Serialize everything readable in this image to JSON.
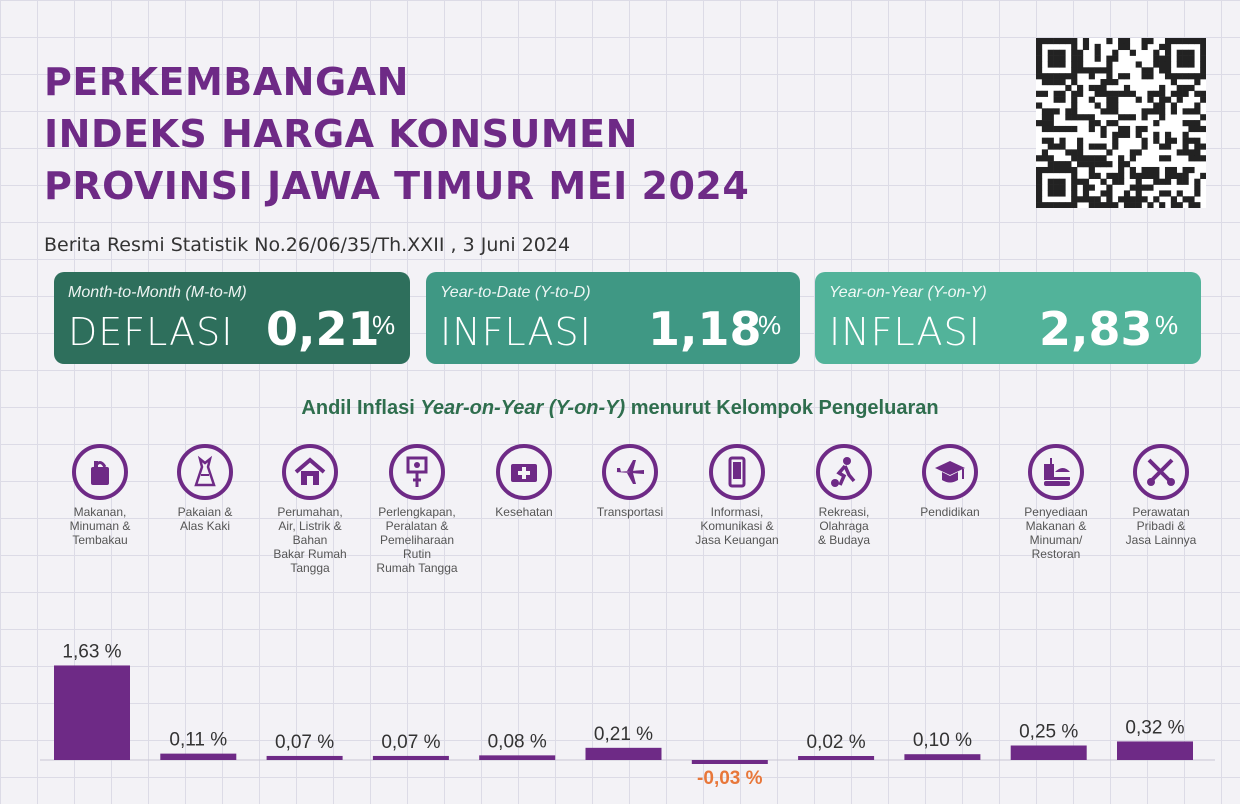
{
  "title": {
    "line1": "PERKEMBANGAN",
    "line2": "INDEKS HARGA KONSUMEN",
    "line3": "PROVINSI JAWA TIMUR MEI 2024"
  },
  "subtitle": "Berita Resmi Statistik No.26/06/35/Th.XXII , 3 Juni 2024",
  "colors": {
    "title": "#6e2a86",
    "bar": "#6e2a86",
    "negative_label": "#e8773a",
    "card_mtm": "#2e6f5c",
    "card_ytd": "#3f9884",
    "card_yoy": "#52b39a"
  },
  "cards": [
    {
      "label": "Month-to-Month (M-to-M)",
      "word": "DEFLASI",
      "value": "0,21",
      "unit": "%"
    },
    {
      "label": "Year-to-Date (Y-to-D)",
      "word": "INFLASI",
      "value": "1,18",
      "unit": "%"
    },
    {
      "label": "Year-on-Year (Y-on-Y)",
      "word": "INFLASI",
      "value": "2,83",
      "unit": "%"
    }
  ],
  "chart_title": {
    "part1": "Andil Inflasi ",
    "part2": "Year-on-Year (Y-on-Y)",
    "part3": " menurut Kelompok Pengeluaran"
  },
  "categories": [
    {
      "name": "Makanan,\nMinuman &\nTembakau",
      "icon": "grocery-bag-icon"
    },
    {
      "name": "Pakaian &\nAlas Kaki",
      "icon": "dress-icon"
    },
    {
      "name": "Perumahan,\nAir, Listrik &\nBahan\nBakar Rumah\nTangga",
      "icon": "house-icon"
    },
    {
      "name": "Perlengkapan,\nPeralatan &\nPemeliharaan\nRutin\nRumah Tangga",
      "icon": "plug-icon"
    },
    {
      "name": "Kesehatan",
      "icon": "medical-kit-icon"
    },
    {
      "name": "Transportasi",
      "icon": "airplane-icon"
    },
    {
      "name": "Informasi,\nKomunikasi &\nJasa Keuangan",
      "icon": "smartphone-icon"
    },
    {
      "name": "Rekreasi,\nOlahraga\n& Budaya",
      "icon": "soccer-player-icon"
    },
    {
      "name": "Pendidikan",
      "icon": "graduation-cap-icon"
    },
    {
      "name": "Penyediaan\nMakanan &\nMinuman/\nRestoran",
      "icon": "fast-food-icon"
    },
    {
      "name": "Perawatan\nPribadi &\nJasa Lainnya",
      "icon": "scissors-comb-icon"
    }
  ],
  "chart_data": {
    "type": "bar",
    "title": "Andil Inflasi Year-on-Year (Y-on-Y) menurut Kelompok Pengeluaran",
    "categories": [
      "Makanan, Minuman & Tembakau",
      "Pakaian & Alas Kaki",
      "Perumahan, Air, Listrik & Bahan Bakar Rumah Tangga",
      "Perlengkapan, Peralatan & Pemeliharaan Rutin Rumah Tangga",
      "Kesehatan",
      "Transportasi",
      "Informasi, Komunikasi & Jasa Keuangan",
      "Rekreasi, Olahraga & Budaya",
      "Pendidikan",
      "Penyediaan Makanan & Minuman/ Restoran",
      "Perawatan Pribadi & Jasa Lainnya"
    ],
    "values": [
      1.63,
      0.11,
      0.07,
      0.07,
      0.08,
      0.21,
      -0.03,
      0.02,
      0.1,
      0.25,
      0.32
    ],
    "labels": [
      "1,63 %",
      "0,11 %",
      "0,07 %",
      "0,07 %",
      "0,08 %",
      "0,21 %",
      "-0,03 %",
      "0,02 %",
      "0,10 %",
      "0,25 %",
      "0,32 %"
    ],
    "xlabel": "",
    "ylabel": "",
    "grid": false,
    "legend": "none"
  }
}
